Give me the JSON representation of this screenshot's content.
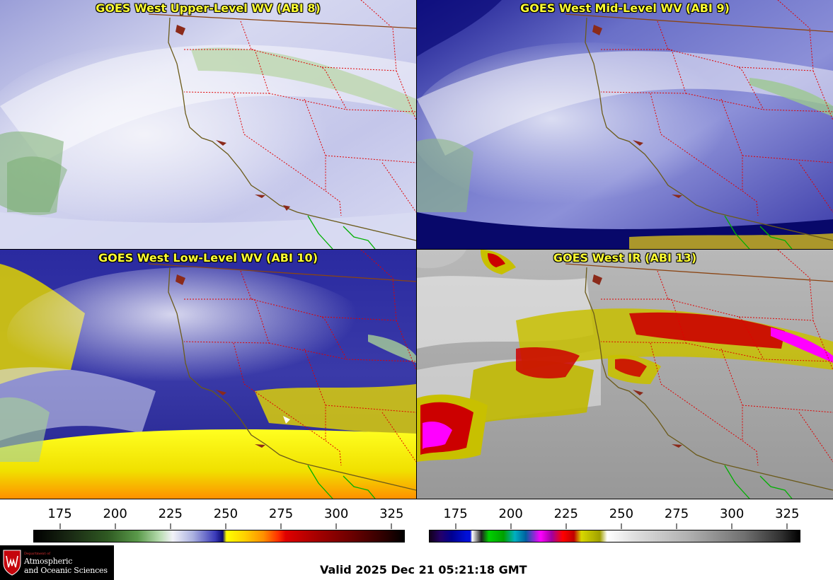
{
  "panels": [
    {
      "id": "p1",
      "title": "GOES West Upper-Level WV (ABI 8)"
    },
    {
      "id": "p2",
      "title": "GOES West Mid-Level WV (ABI 9)"
    },
    {
      "id": "p3",
      "title": "GOES West Low-Level WV (ABI 10)"
    },
    {
      "id": "p4",
      "title": "GOES West IR (ABI 13)"
    }
  ],
  "colorbars": {
    "left": {
      "ticks": [
        "175",
        "200",
        "225",
        "250",
        "275",
        "300",
        "325"
      ],
      "min": 163,
      "max": 331
    },
    "right": {
      "ticks": [
        "175",
        "200",
        "225",
        "250",
        "275",
        "300",
        "325"
      ],
      "min": 163,
      "max": 331
    }
  },
  "valid_time": "Valid 2025 Dec 21 05:21:18 GMT",
  "logo": {
    "dept": "Department of",
    "line1": "Atmospheric",
    "line2": "and Oceanic Sciences"
  }
}
